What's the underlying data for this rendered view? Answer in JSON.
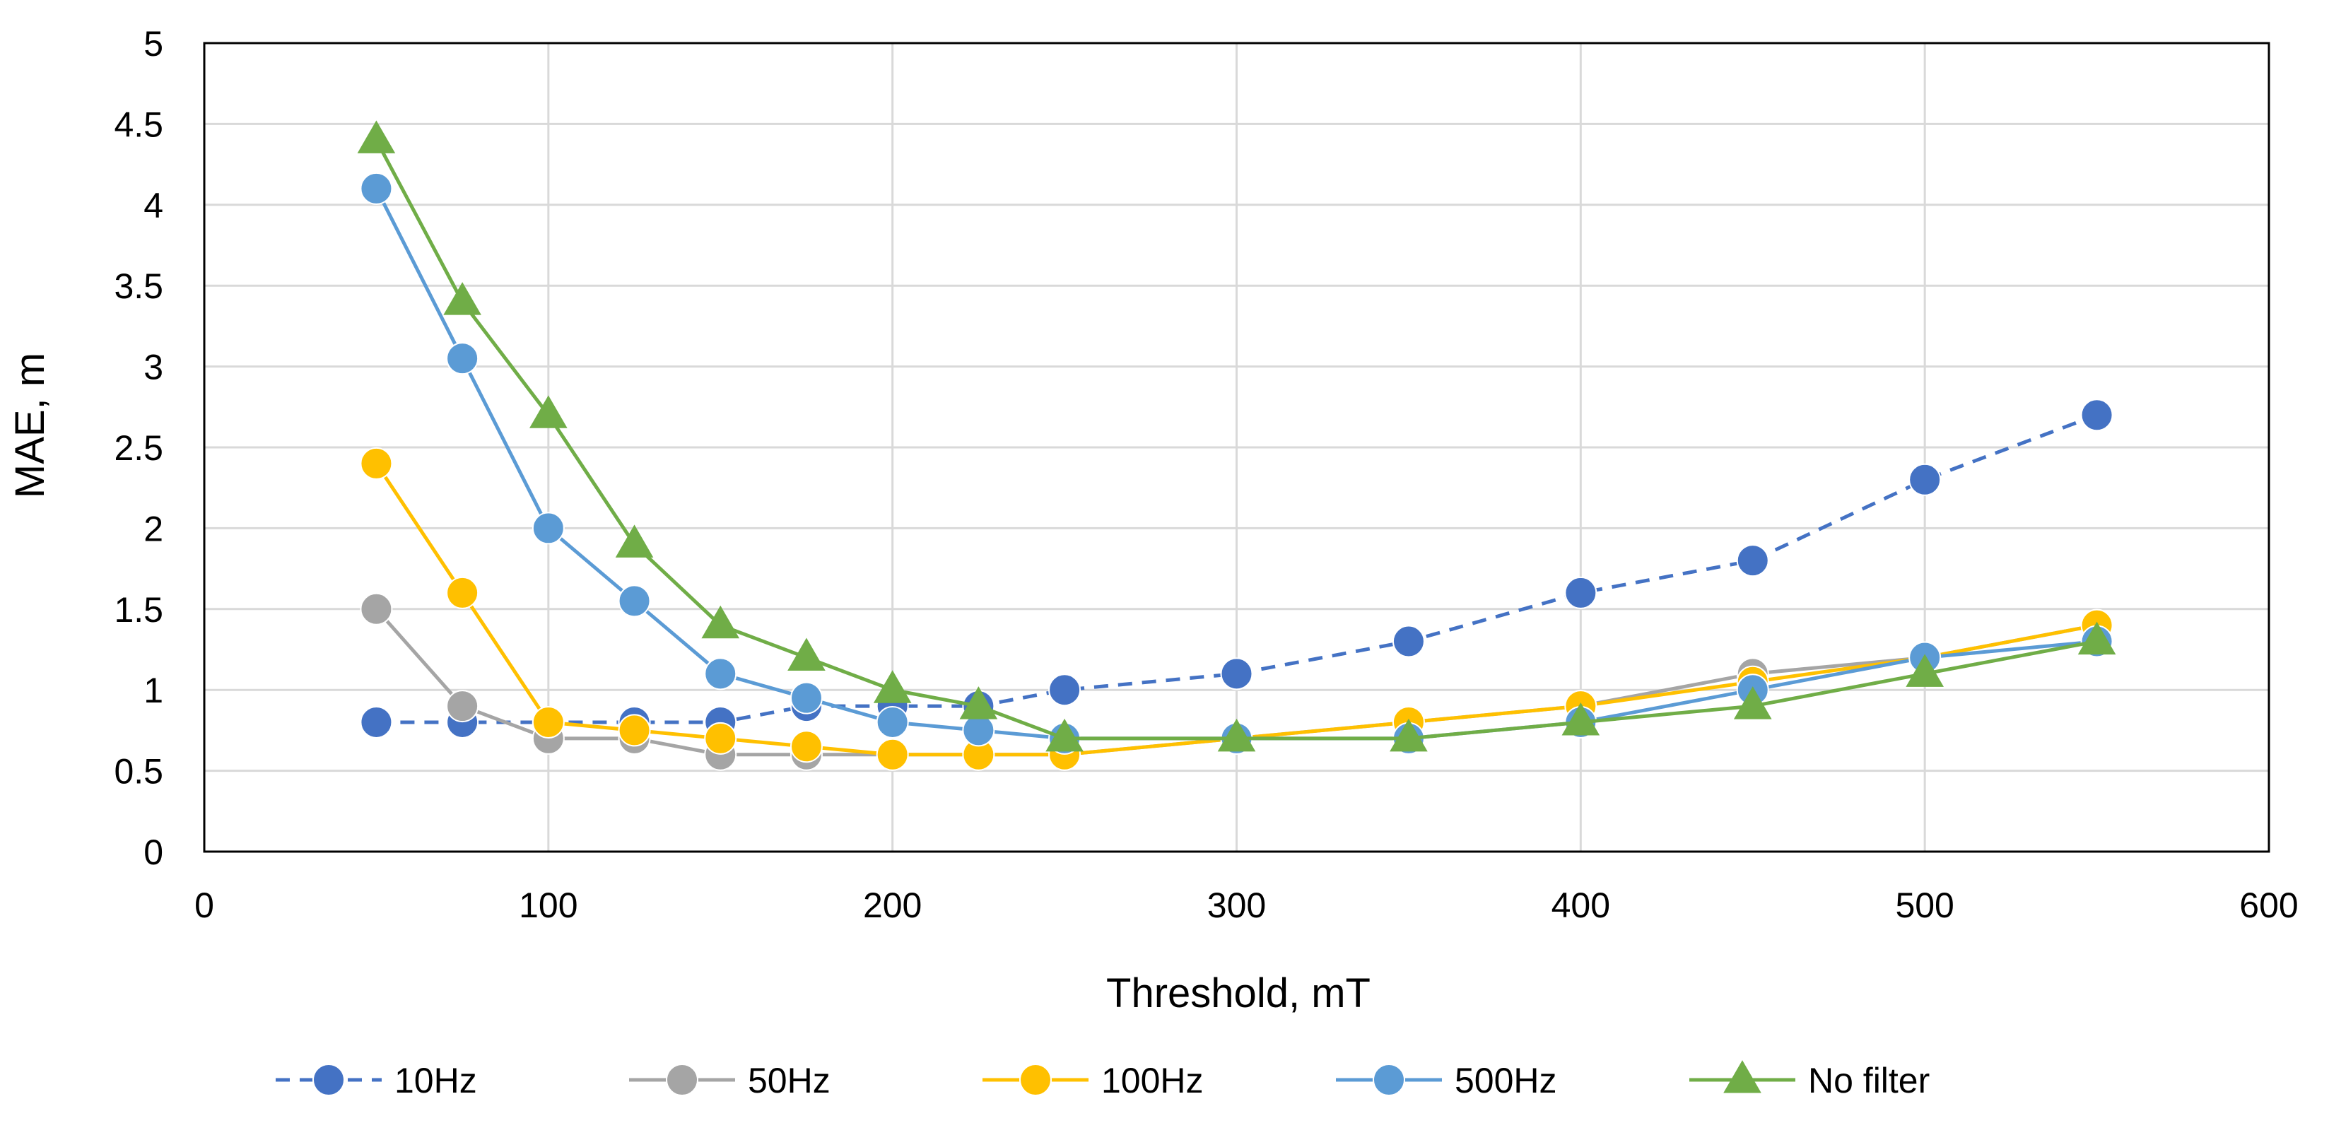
{
  "chart_data": {
    "type": "line",
    "title": "",
    "xlabel": "Threshold, mT",
    "ylabel": "MAE, m",
    "xlim": [
      0,
      600
    ],
    "ylim": [
      0,
      5
    ],
    "xticks": [
      0,
      100,
      200,
      300,
      400,
      500,
      600
    ],
    "yticks": [
      0,
      0.5,
      1,
      1.5,
      2,
      2.5,
      3,
      3.5,
      4,
      4.5,
      5
    ],
    "xtick_labels": [
      "0",
      "100",
      "200",
      "300",
      "400",
      "500",
      "600"
    ],
    "ytick_labels": [
      "0",
      "0.5",
      "1",
      "1.5",
      "2",
      "2.5",
      "3",
      "3.5",
      "4",
      "4.5",
      "5"
    ],
    "grid": true,
    "legend_position": "bottom",
    "series": [
      {
        "name": "10Hz",
        "color": "#4472C4",
        "dashed": true,
        "marker": "circle",
        "x": [
          50,
          75,
          100,
          125,
          150,
          175,
          200,
          225,
          250,
          300,
          350,
          400,
          450,
          500,
          550
        ],
        "y": [
          0.8,
          0.8,
          0.8,
          0.8,
          0.8,
          0.9,
          0.9,
          0.9,
          1.0,
          1.1,
          1.3,
          1.6,
          1.8,
          2.3,
          2.7
        ]
      },
      {
        "name": "50Hz",
        "color": "#A5A5A5",
        "dashed": false,
        "marker": "circle",
        "x": [
          50,
          75,
          100,
          125,
          150,
          175,
          200,
          225,
          250,
          300,
          350,
          400,
          450,
          500,
          550
        ],
        "y": [
          1.5,
          0.9,
          0.7,
          0.7,
          0.6,
          0.6,
          0.6,
          0.6,
          0.6,
          0.7,
          0.8,
          0.9,
          1.1,
          1.2,
          1.4
        ]
      },
      {
        "name": "100Hz",
        "color": "#FFC000",
        "dashed": false,
        "marker": "circle",
        "x": [
          50,
          75,
          100,
          125,
          150,
          175,
          200,
          225,
          250,
          300,
          350,
          400,
          450,
          500,
          550
        ],
        "y": [
          2.4,
          1.6,
          0.8,
          0.75,
          0.7,
          0.65,
          0.6,
          0.6,
          0.6,
          0.7,
          0.8,
          0.9,
          1.05,
          1.2,
          1.4
        ]
      },
      {
        "name": "500Hz",
        "color": "#5B9BD5",
        "dashed": false,
        "marker": "circle",
        "x": [
          50,
          75,
          100,
          125,
          150,
          175,
          200,
          225,
          250,
          300,
          350,
          400,
          450,
          500,
          550
        ],
        "y": [
          4.1,
          3.05,
          2.0,
          1.55,
          1.1,
          0.95,
          0.8,
          0.75,
          0.7,
          0.7,
          0.7,
          0.8,
          1.0,
          1.2,
          1.3
        ]
      },
      {
        "name": "No filter",
        "color": "#70AD47",
        "dashed": false,
        "marker": "triangle",
        "x": [
          50,
          75,
          100,
          125,
          150,
          175,
          200,
          225,
          250,
          300,
          350,
          400,
          450,
          500,
          550
        ],
        "y": [
          4.4,
          3.4,
          2.7,
          1.9,
          1.4,
          1.2,
          1.0,
          0.9,
          0.7,
          0.7,
          0.7,
          0.8,
          0.9,
          1.1,
          1.3
        ]
      }
    ]
  }
}
